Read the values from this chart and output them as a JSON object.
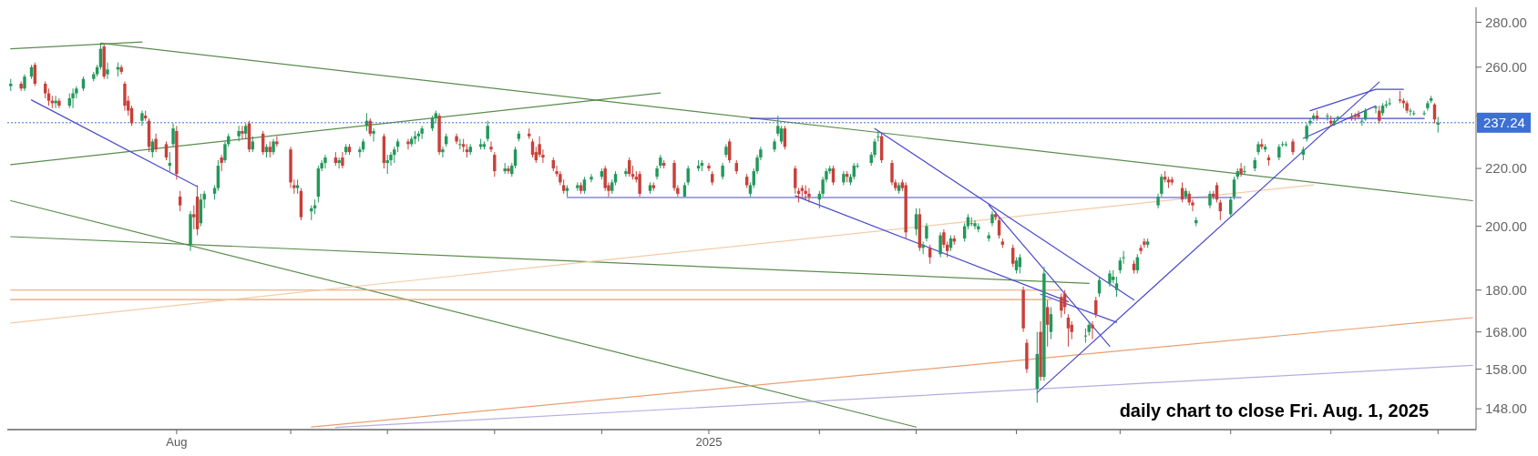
{
  "chart_data": {
    "type": "candlestick",
    "log": true,
    "xlim": [
      "2024-06-13",
      "2025-08-12"
    ],
    "ylim": [
      143,
      287
    ],
    "xticks": [
      {
        "value": "2024-08-01",
        "label": "Aug"
      },
      {
        "value": "2024-09-03",
        "label": null
      },
      {
        "value": "2024-10-01",
        "label": null
      },
      {
        "value": "2024-11-01",
        "label": null
      },
      {
        "value": "2024-12-02",
        "label": null
      },
      {
        "value": "2025-01-02",
        "label": "2025"
      },
      {
        "value": "2025-02-03",
        "label": null
      },
      {
        "value": "2025-03-03",
        "label": null
      },
      {
        "value": "2025-04-01",
        "label": null
      },
      {
        "value": "2025-05-01",
        "label": null
      },
      {
        "value": "2025-06-02",
        "label": null
      },
      {
        "value": "2025-07-01",
        "label": null
      },
      {
        "value": "2025-08-01",
        "label": null
      }
    ],
    "yticks": [
      {
        "value": 148,
        "label": "148.00"
      },
      {
        "value": 158,
        "label": "158.00"
      },
      {
        "value": 168,
        "label": "168.00"
      },
      {
        "value": 180,
        "label": "180.00"
      },
      {
        "value": 200,
        "label": "200.00"
      },
      {
        "value": 220,
        "label": "220.00"
      },
      {
        "value": 240,
        "label": null
      },
      {
        "value": 260,
        "label": "260.00"
      },
      {
        "value": 280,
        "label": "280.00"
      }
    ],
    "x": [
      "2024-06-14",
      "2024-06-17",
      "2024-06-18",
      "2024-06-20",
      "2024-06-21",
      "2024-06-24",
      "2024-06-25",
      "2024-06-26",
      "2024-06-27",
      "2024-06-28",
      "2024-07-01",
      "2024-07-02",
      "2024-07-03",
      "2024-07-05",
      "2024-07-08",
      "2024-07-09",
      "2024-07-10",
      "2024-07-11",
      "2024-07-12",
      "2024-07-15",
      "2024-07-16",
      "2024-07-17",
      "2024-07-18",
      "2024-07-19",
      "2024-07-22",
      "2024-07-23",
      "2024-07-24",
      "2024-07-25",
      "2024-07-26",
      "2024-07-29",
      "2024-07-30",
      "2024-07-31",
      "2024-08-01",
      "2024-08-02",
      "2024-08-05",
      "2024-08-06",
      "2024-08-07",
      "2024-08-08",
      "2024-08-09",
      "2024-08-12",
      "2024-08-13",
      "2024-08-14",
      "2024-08-15",
      "2024-08-16",
      "2024-08-19",
      "2024-08-20",
      "2024-08-21",
      "2024-08-22",
      "2024-08-23",
      "2024-08-26",
      "2024-08-27",
      "2024-08-28",
      "2024-08-29",
      "2024-08-30",
      "2024-09-03",
      "2024-09-04",
      "2024-09-05",
      "2024-09-06",
      "2024-09-09",
      "2024-09-10",
      "2024-09-11",
      "2024-09-12",
      "2024-09-13",
      "2024-09-16",
      "2024-09-17",
      "2024-09-18",
      "2024-09-19",
      "2024-09-20",
      "2024-09-23",
      "2024-09-24",
      "2024-09-25",
      "2024-09-26",
      "2024-09-27",
      "2024-09-30",
      "2024-10-01",
      "2024-10-02",
      "2024-10-03",
      "2024-10-04",
      "2024-10-07",
      "2024-10-08",
      "2024-10-09",
      "2024-10-10",
      "2024-10-11",
      "2024-10-14",
      "2024-10-15",
      "2024-10-16",
      "2024-10-17",
      "2024-10-18",
      "2024-10-21",
      "2024-10-22",
      "2024-10-23",
      "2024-10-24",
      "2024-10-25",
      "2024-10-28",
      "2024-10-29",
      "2024-10-30",
      "2024-10-31",
      "2024-11-01",
      "2024-11-04",
      "2024-11-05",
      "2024-11-06",
      "2024-11-07",
      "2024-11-08",
      "2024-11-11",
      "2024-11-12",
      "2024-11-13",
      "2024-11-14",
      "2024-11-15",
      "2024-11-18",
      "2024-11-19",
      "2024-11-20",
      "2024-11-21",
      "2024-11-22",
      "2024-11-25",
      "2024-11-26",
      "2024-11-27",
      "2024-11-29",
      "2024-12-02",
      "2024-12-03",
      "2024-12-04",
      "2024-12-05",
      "2024-12-06",
      "2024-12-09",
      "2024-12-10",
      "2024-12-11",
      "2024-12-12",
      "2024-12-13",
      "2024-12-16",
      "2024-12-17",
      "2024-12-18",
      "2024-12-19",
      "2024-12-20",
      "2024-12-23",
      "2024-12-24",
      "2024-12-26",
      "2024-12-27",
      "2024-12-30",
      "2024-12-31",
      "2025-01-02",
      "2025-01-03",
      "2025-01-06",
      "2025-01-07",
      "2025-01-08",
      "2025-01-10",
      "2025-01-13",
      "2025-01-14",
      "2025-01-15",
      "2025-01-16",
      "2025-01-17",
      "2025-01-21",
      "2025-01-22",
      "2025-01-23",
      "2025-01-24",
      "2025-01-27",
      "2025-01-28",
      "2025-01-29",
      "2025-01-30",
      "2025-01-31",
      "2025-02-03",
      "2025-02-04",
      "2025-02-05",
      "2025-02-06",
      "2025-02-07",
      "2025-02-10",
      "2025-02-11",
      "2025-02-12",
      "2025-02-13",
      "2025-02-14",
      "2025-02-18",
      "2025-02-19",
      "2025-02-20",
      "2025-02-21",
      "2025-02-24",
      "2025-02-25",
      "2025-02-26",
      "2025-02-27",
      "2025-02-28",
      "2025-03-03",
      "2025-03-04",
      "2025-03-05",
      "2025-03-06",
      "2025-03-07",
      "2025-03-10",
      "2025-03-11",
      "2025-03-12",
      "2025-03-13",
      "2025-03-14",
      "2025-03-17",
      "2025-03-18",
      "2025-03-19",
      "2025-03-20",
      "2025-03-21",
      "2025-03-24",
      "2025-03-25",
      "2025-03-26",
      "2025-03-27",
      "2025-03-28",
      "2025-03-31",
      "2025-04-01",
      "2025-04-02",
      "2025-04-03",
      "2025-04-04",
      "2025-04-07",
      "2025-04-08",
      "2025-04-09",
      "2025-04-10",
      "2025-04-11",
      "2025-04-14",
      "2025-04-15",
      "2025-04-16",
      "2025-04-17",
      "2025-04-21",
      "2025-04-22",
      "2025-04-23",
      "2025-04-24",
      "2025-04-25",
      "2025-04-28",
      "2025-04-29",
      "2025-04-30",
      "2025-05-01",
      "2025-05-02",
      "2025-05-05",
      "2025-05-06",
      "2025-05-07",
      "2025-05-08",
      "2025-05-09",
      "2025-05-12",
      "2025-05-13",
      "2025-05-14",
      "2025-05-15",
      "2025-05-16",
      "2025-05-19",
      "2025-05-20",
      "2025-05-21",
      "2025-05-22",
      "2025-05-23",
      "2025-05-27",
      "2025-05-28",
      "2025-05-29",
      "2025-05-30",
      "2025-06-02",
      "2025-06-03",
      "2025-06-04",
      "2025-06-05",
      "2025-06-06",
      "2025-06-09",
      "2025-06-10",
      "2025-06-11",
      "2025-06-12",
      "2025-06-13",
      "2025-06-16",
      "2025-06-17",
      "2025-06-18",
      "2025-06-20",
      "2025-06-23",
      "2025-06-24",
      "2025-06-25",
      "2025-06-26",
      "2025-06-27",
      "2025-06-30",
      "2025-07-01",
      "2025-07-02",
      "2025-07-03",
      "2025-07-07",
      "2025-07-08",
      "2025-07-09",
      "2025-07-10",
      "2025-07-11",
      "2025-07-14",
      "2025-07-15",
      "2025-07-16",
      "2025-07-17",
      "2025-07-18",
      "2025-07-21",
      "2025-07-22",
      "2025-07-23",
      "2025-07-24",
      "2025-07-25",
      "2025-07-28",
      "2025-07-29",
      "2025-07-30",
      "2025-07-31",
      "2025-08-01"
    ],
    "ohlc": [
      [
        252,
        255,
        250,
        253
      ],
      [
        253,
        254,
        250,
        251
      ],
      [
        251,
        257,
        250,
        256
      ],
      [
        256,
        261,
        255,
        260
      ],
      [
        261,
        262,
        252,
        253
      ],
      [
        253,
        254,
        247,
        249
      ],
      [
        249,
        251,
        244,
        246
      ],
      [
        246,
        248,
        243,
        245
      ],
      [
        245,
        248,
        243,
        246
      ],
      [
        246,
        247,
        243,
        244
      ],
      [
        244,
        249,
        243,
        247
      ],
      [
        247,
        251,
        243,
        249
      ],
      [
        249,
        252,
        247,
        251
      ],
      [
        251,
        256,
        250,
        255
      ],
      [
        255,
        258,
        254,
        257
      ],
      [
        257,
        261,
        256,
        260
      ],
      [
        260,
        270,
        259,
        268
      ],
      [
        269,
        270,
        255,
        256
      ],
      [
        257,
        262,
        255,
        259
      ],
      [
        259,
        262,
        256,
        260
      ],
      [
        260,
        261,
        257,
        258
      ],
      [
        253,
        254,
        242,
        244
      ],
      [
        246,
        248,
        240,
        242
      ],
      [
        243,
        244,
        236,
        237
      ],
      [
        238,
        242,
        236,
        241
      ],
      [
        240,
        242,
        238,
        239
      ],
      [
        238,
        239,
        226,
        228
      ],
      [
        226,
        231,
        224,
        230
      ],
      [
        231,
        233,
        226,
        227
      ],
      [
        229,
        230,
        223,
        224
      ],
      [
        221,
        226,
        219,
        222
      ],
      [
        229,
        237,
        228,
        235
      ],
      [
        234,
        236,
        216,
        218
      ],
      [
        210,
        212,
        205,
        207
      ],
      [
        194,
        205,
        192,
        204
      ],
      [
        204,
        207,
        199,
        203
      ],
      [
        210,
        214,
        197,
        199
      ],
      [
        201,
        211,
        200,
        209
      ],
      [
        209,
        212,
        206,
        211
      ],
      [
        211,
        214,
        209,
        213
      ],
      [
        213,
        223,
        212,
        221
      ],
      [
        224,
        225,
        219,
        222
      ],
      [
        223,
        230,
        222,
        229
      ],
      [
        229,
        233,
        228,
        232
      ],
      [
        232,
        236,
        230,
        234
      ],
      [
        234,
        236,
        231,
        233
      ],
      [
        233,
        237,
        231,
        236
      ],
      [
        237,
        238,
        226,
        227
      ],
      [
        227,
        232,
        226,
        230
      ],
      [
        233,
        234,
        225,
        226
      ],
      [
        226,
        229,
        224,
        228
      ],
      [
        228,
        230,
        224,
        226
      ],
      [
        226,
        231,
        225,
        230
      ],
      [
        230,
        232,
        228,
        229
      ],
      [
        227,
        228,
        213,
        215
      ],
      [
        214,
        216,
        211,
        213
      ],
      [
        213,
        216,
        211,
        214
      ],
      [
        212,
        213,
        202,
        203
      ],
      [
        205,
        207,
        202,
        206
      ],
      [
        206,
        209,
        204,
        207
      ],
      [
        210,
        221,
        208,
        220
      ],
      [
        220,
        223,
        219,
        222
      ],
      [
        222,
        225,
        220,
        224
      ],
      [
        224,
        226,
        221,
        222
      ],
      [
        222,
        224,
        220,
        223
      ],
      [
        224,
        226,
        220,
        221
      ],
      [
        226,
        229,
        225,
        228
      ],
      [
        228,
        229,
        225,
        226
      ],
      [
        226,
        228,
        224,
        227
      ],
      [
        227,
        231,
        226,
        230
      ],
      [
        236,
        241,
        234,
        238
      ],
      [
        238,
        239,
        232,
        233
      ],
      [
        233,
        235,
        230,
        234
      ],
      [
        232,
        233,
        220,
        222
      ],
      [
        222,
        225,
        218,
        223
      ],
      [
        223,
        226,
        221,
        225
      ],
      [
        225,
        228,
        222,
        227
      ],
      [
        228,
        231,
        226,
        230
      ],
      [
        230,
        231,
        227,
        229
      ],
      [
        229,
        232,
        228,
        231
      ],
      [
        231,
        234,
        229,
        232
      ],
      [
        232,
        234,
        230,
        233
      ],
      [
        233,
        236,
        231,
        235
      ],
      [
        235,
        240,
        234,
        239
      ],
      [
        239,
        242,
        237,
        241
      ],
      [
        240,
        241,
        225,
        226
      ],
      [
        226,
        228,
        224,
        227
      ],
      [
        229,
        233,
        228,
        232
      ],
      [
        232,
        233,
        229,
        230
      ],
      [
        229,
        231,
        227,
        229
      ],
      [
        229,
        231,
        226,
        228
      ],
      [
        227,
        229,
        224,
        226
      ],
      [
        226,
        229,
        225,
        228
      ],
      [
        228,
        231,
        227,
        229
      ],
      [
        228,
        230,
        227,
        229
      ],
      [
        231,
        238,
        230,
        236
      ],
      [
        228,
        230,
        226,
        227
      ],
      [
        225,
        226,
        217,
        219
      ],
      [
        219,
        222,
        218,
        220
      ],
      [
        220,
        221,
        218,
        219
      ],
      [
        218,
        222,
        217,
        221
      ],
      [
        221,
        228,
        220,
        227
      ],
      [
        231,
        234,
        230,
        233
      ],
      [
        233,
        235,
        231,
        232
      ],
      [
        230,
        231,
        224,
        225
      ],
      [
        226,
        228,
        222,
        223
      ],
      [
        229,
        232,
        224,
        225
      ],
      [
        225,
        227,
        222,
        224
      ],
      [
        223,
        224,
        219,
        220
      ],
      [
        219,
        221,
        217,
        218
      ],
      [
        218,
        219,
        214,
        215
      ],
      [
        214,
        216,
        211,
        212
      ],
      [
        212,
        214,
        210,
        213
      ],
      [
        213,
        215,
        212,
        214
      ],
      [
        214,
        215,
        211,
        212
      ],
      [
        212,
        217,
        211,
        216
      ],
      [
        216,
        218,
        215,
        217
      ],
      [
        217,
        220,
        216,
        219
      ],
      [
        220,
        221,
        212,
        213
      ],
      [
        214,
        215,
        210,
        212
      ],
      [
        212,
        216,
        211,
        215
      ],
      [
        215,
        219,
        214,
        218
      ],
      [
        218,
        220,
        217,
        219
      ],
      [
        223,
        224,
        217,
        218
      ],
      [
        218,
        221,
        216,
        217
      ],
      [
        217,
        219,
        215,
        216
      ],
      [
        218,
        219,
        210,
        211
      ],
      [
        212,
        215,
        211,
        214
      ],
      [
        214,
        215,
        212,
        213
      ],
      [
        217,
        221,
        216,
        220
      ],
      [
        221,
        225,
        220,
        224
      ],
      [
        222,
        223,
        220,
        221
      ],
      [
        222,
        223,
        212,
        213
      ],
      [
        213,
        214,
        210,
        211
      ],
      [
        210,
        215,
        210,
        214
      ],
      [
        215,
        221,
        214,
        220
      ],
      [
        220,
        223,
        219,
        221
      ],
      [
        221,
        223,
        219,
        222
      ],
      [
        221,
        222,
        219,
        220
      ],
      [
        218,
        219,
        214,
        215
      ],
      [
        217,
        222,
        216,
        221
      ],
      [
        225,
        229,
        224,
        228
      ],
      [
        230,
        231,
        222,
        223
      ],
      [
        222,
        223,
        218,
        219
      ],
      [
        217,
        218,
        213,
        214
      ],
      [
        211,
        215,
        210,
        214
      ],
      [
        214,
        220,
        213,
        219
      ],
      [
        219,
        225,
        218,
        224
      ],
      [
        224,
        228,
        223,
        227
      ],
      [
        227,
        231,
        226,
        230
      ],
      [
        233,
        240,
        232,
        236
      ],
      [
        230,
        236,
        229,
        235
      ],
      [
        235,
        236,
        227,
        228
      ],
      [
        220,
        221,
        211,
        213
      ],
      [
        212,
        213,
        208,
        211
      ],
      [
        213,
        214,
        210,
        212
      ],
      [
        212,
        214,
        209,
        211
      ],
      [
        211,
        213,
        208,
        210
      ],
      [
        209,
        212,
        206,
        211
      ],
      [
        211,
        217,
        210,
        216
      ],
      [
        216,
        220,
        215,
        219
      ],
      [
        219,
        221,
        218,
        220
      ],
      [
        220,
        221,
        214,
        215
      ],
      [
        215,
        219,
        214,
        218
      ],
      [
        218,
        219,
        215,
        217
      ],
      [
        215,
        218,
        214,
        217
      ],
      [
        217,
        222,
        216,
        221
      ],
      [
        221,
        222,
        220,
        221
      ],
      [
        222,
        226,
        221,
        225
      ],
      [
        225,
        231,
        224,
        230
      ],
      [
        232,
        234,
        230,
        232
      ],
      [
        232,
        233,
        222,
        223
      ],
      [
        222,
        223,
        214,
        215
      ],
      [
        215,
        216,
        212,
        213
      ],
      [
        212,
        215,
        211,
        214
      ],
      [
        215,
        216,
        212,
        213
      ],
      [
        214,
        215,
        196,
        198
      ],
      [
        199,
        206,
        197,
        204
      ],
      [
        204,
        206,
        192,
        193
      ],
      [
        193,
        195,
        191,
        194
      ],
      [
        196,
        201,
        195,
        200
      ],
      [
        193,
        194,
        188,
        190
      ],
      [
        191,
        198,
        190,
        197
      ],
      [
        198,
        199,
        193,
        194
      ],
      [
        194,
        195,
        190,
        192
      ],
      [
        193,
        197,
        192,
        196
      ],
      [
        196,
        197,
        194,
        195
      ],
      [
        196,
        201,
        195,
        200
      ],
      [
        200,
        204,
        199,
        203
      ],
      [
        201,
        203,
        200,
        201
      ],
      [
        200,
        202,
        199,
        201
      ],
      [
        199,
        201,
        198,
        200
      ],
      [
        196,
        198,
        195,
        197
      ],
      [
        201,
        205,
        200,
        204
      ],
      [
        204,
        205,
        202,
        203
      ],
      [
        202,
        203,
        196,
        197
      ],
      [
        195,
        196,
        193,
        194
      ],
      [
        193,
        194,
        187,
        188
      ],
      [
        186,
        190,
        185,
        189
      ],
      [
        187,
        191,
        185,
        190
      ],
      [
        180,
        181,
        168,
        169
      ],
      [
        165,
        166,
        157,
        158
      ],
      [
        153,
        168,
        149.5,
        162
      ],
      [
        168,
        171,
        155,
        156
      ],
      [
        156,
        187,
        155,
        185
      ],
      [
        175,
        177,
        164,
        170
      ],
      [
        168,
        175,
        166,
        173
      ],
      [
        178,
        179,
        172,
        174
      ],
      [
        179,
        180,
        173,
        175
      ],
      [
        172,
        173,
        164,
        169
      ],
      [
        170,
        171,
        166,
        168
      ],
      [
        167,
        169,
        165,
        167
      ],
      [
        168,
        171,
        167,
        170
      ],
      [
        170,
        171,
        166,
        169
      ],
      [
        177,
        178,
        172,
        173
      ],
      [
        179,
        184,
        178,
        183
      ],
      [
        182,
        186,
        181,
        185
      ],
      [
        183,
        186,
        182,
        184
      ],
      [
        180,
        184,
        178,
        182
      ],
      [
        186,
        190,
        185,
        189
      ],
      [
        190,
        192,
        188,
        190
      ],
      [
        188,
        189,
        185,
        186
      ],
      [
        186,
        191,
        185,
        190
      ],
      [
        193,
        194,
        191,
        192
      ],
      [
        195,
        196,
        193,
        194
      ],
      [
        194,
        196,
        193,
        195
      ],
      [
        207,
        211,
        206,
        210
      ],
      [
        211,
        218,
        210,
        217
      ],
      [
        217,
        219,
        215,
        216
      ],
      [
        216,
        217,
        213,
        215
      ],
      [
        216,
        217,
        214,
        215
      ],
      [
        213,
        215,
        208,
        209
      ],
      [
        210,
        213,
        209,
        212
      ],
      [
        211,
        212,
        207,
        208
      ],
      [
        208,
        209,
        205,
        207
      ],
      [
        201,
        203,
        200,
        202
      ],
      [
        207,
        212,
        206,
        211
      ],
      [
        211,
        212,
        209,
        210
      ],
      [
        214,
        215,
        208,
        209
      ],
      [
        208,
        209,
        202,
        205
      ],
      [
        204,
        210,
        203,
        209
      ],
      [
        210,
        217,
        209,
        216
      ],
      [
        217,
        220,
        216,
        219
      ],
      [
        220,
        222,
        217,
        218
      ],
      [
        219,
        221,
        218,
        219
      ],
      [
        220,
        224,
        219,
        223
      ],
      [
        226,
        230,
        225,
        229
      ],
      [
        229,
        231,
        227,
        228
      ],
      [
        227,
        229,
        226,
        228
      ],
      [
        224,
        225,
        221,
        223
      ],
      [
        224,
        229,
        223,
        228
      ],
      [
        229,
        230,
        228,
        229
      ],
      [
        229,
        230,
        228,
        229
      ],
      [
        230,
        231,
        225,
        226
      ],
      [
        225,
        228,
        223,
        227
      ],
      [
        231,
        237,
        230,
        236
      ],
      [
        237,
        239,
        236,
        238
      ],
      [
        239,
        241,
        238,
        240
      ],
      [
        240,
        242,
        238,
        239
      ],
      [
        240,
        241,
        238,
        240
      ],
      [
        238,
        240,
        236,
        237
      ],
      [
        237,
        239,
        236,
        238
      ],
      [
        239,
        240,
        238,
        239.5
      ],
      [
        239.5,
        241,
        238,
        239
      ],
      [
        240,
        241,
        238,
        239.5
      ],
      [
        240.5,
        242,
        239,
        239.5
      ],
      [
        238,
        239,
        236,
        238
      ],
      [
        238.5,
        243,
        238,
        242
      ],
      [
        243,
        244,
        241,
        243.5
      ],
      [
        242,
        244,
        237,
        238
      ],
      [
        241,
        245,
        240,
        244
      ],
      [
        244,
        246,
        243,
        244.5
      ],
      [
        245,
        247,
        244,
        245
      ],
      [
        246.5,
        250,
        245,
        246
      ],
      [
        246,
        247,
        243,
        245
      ],
      [
        245,
        246,
        241,
        242
      ],
      [
        242,
        243,
        240,
        242
      ],
      [
        241,
        242,
        240,
        241
      ],
      [
        241,
        242,
        240,
        241
      ],
      [
        243,
        246,
        242,
        245
      ],
      [
        246,
        248,
        245,
        247
      ],
      [
        244.5,
        245,
        237,
        238.5
      ],
      [
        236.5,
        239.5,
        233.4,
        237.24
      ]
    ],
    "series": [
      {
        "type": "line",
        "color": "#5b8c4e",
        "x": [
          "2024-06-14",
          "2024-07-22"
        ],
        "values": [
          268,
          271
        ]
      },
      {
        "type": "line",
        "color": "#5b8c4e",
        "x": [
          "2024-07-10",
          "2025-08-11"
        ],
        "values": [
          270.5,
          208.6
        ]
      },
      {
        "type": "line",
        "color": "#5b8c4e",
        "x": [
          "2024-06-14",
          "2024-12-19"
        ],
        "values": [
          221.4,
          249.2
        ]
      },
      {
        "type": "line",
        "color": "#5b8c4e",
        "x": [
          "2024-06-14",
          "2025-03-03"
        ],
        "values": [
          208.6,
          143.6
        ]
      },
      {
        "type": "line",
        "color": "#5b8c4e",
        "x": [
          "2024-06-14",
          "2025-04-22"
        ],
        "values": [
          196.6,
          182
        ]
      },
      {
        "type": "line",
        "color": "#e8a070",
        "x": [
          "2024-06-14",
          "2025-04-14"
        ],
        "values": [
          180,
          180
        ]
      },
      {
        "type": "line",
        "color": "#e8a070",
        "x": [
          "2024-06-14",
          "2025-04-11"
        ],
        "values": [
          177.2,
          177.2
        ]
      },
      {
        "type": "line",
        "color": "#f5cba6",
        "x": [
          "2024-06-14",
          "2025-06-26"
        ],
        "values": [
          170.5,
          214.1
        ]
      },
      {
        "type": "line",
        "color": "#e8a070",
        "x": [
          "2024-09-09",
          "2025-08-11"
        ],
        "values": [
          143.6,
          172
        ]
      },
      {
        "type": "line",
        "color": "#b4aee0",
        "x": [
          "2024-09-16",
          "2025-08-11"
        ],
        "values": [
          143.5,
          159
        ]
      },
      {
        "type": "line",
        "color": "#4a4acc",
        "x": [
          "2024-06-20",
          "2024-08-07"
        ],
        "values": [
          246.3,
          213.5
        ]
      },
      {
        "type": "line",
        "color": "#4a4acc",
        "x": [
          "2024-11-22",
          "2025-06-05"
        ],
        "values": [
          209.7,
          209.7
        ]
      },
      {
        "type": "line",
        "color": "#4a4acc",
        "x": [
          "2025-01-14",
          "2025-07-28"
        ],
        "values": [
          238.9,
          238.9
        ]
      },
      {
        "type": "line",
        "color": "#4a4acc",
        "x": [
          "2025-01-27",
          "2025-04-16"
        ],
        "values": [
          210.3,
          176.6
        ]
      },
      {
        "type": "line",
        "color": "#4a4acc",
        "x": [
          "2025-02-19",
          "2025-05-05"
        ],
        "values": [
          235,
          177.1
        ]
      },
      {
        "type": "line",
        "color": "#4a4acc",
        "x": [
          "2025-03-24",
          "2025-04-28"
        ],
        "values": [
          207.2,
          164.1
        ]
      },
      {
        "type": "line",
        "color": "#4a4acc",
        "x": [
          "2025-04-08",
          "2025-04-30"
        ],
        "values": [
          178.8,
          170.7
        ]
      },
      {
        "type": "line",
        "color": "#4a4acc",
        "x": [
          "2025-04-07",
          "2025-07-15"
        ],
        "values": [
          152,
          253.7
        ]
      },
      {
        "type": "line",
        "color": "#4a4acc",
        "x": [
          "2025-06-25",
          "2025-07-14",
          "2025-07-22"
        ],
        "values": [
          242,
          250.7,
          250.7
        ]
      },
      {
        "type": "line",
        "color": "#4a4acc",
        "x": [
          "2025-06-23",
          "2025-07-14"
        ],
        "values": [
          231.2,
          243.9
        ]
      }
    ],
    "ref_lines": [
      {
        "axis": "y",
        "value": 237.24,
        "label": "237.24",
        "color": "#3d6fd6",
        "line_style": "dotted"
      }
    ],
    "annotations": [
      "daily chart to close Fri. Aug. 1, 2025"
    ]
  }
}
